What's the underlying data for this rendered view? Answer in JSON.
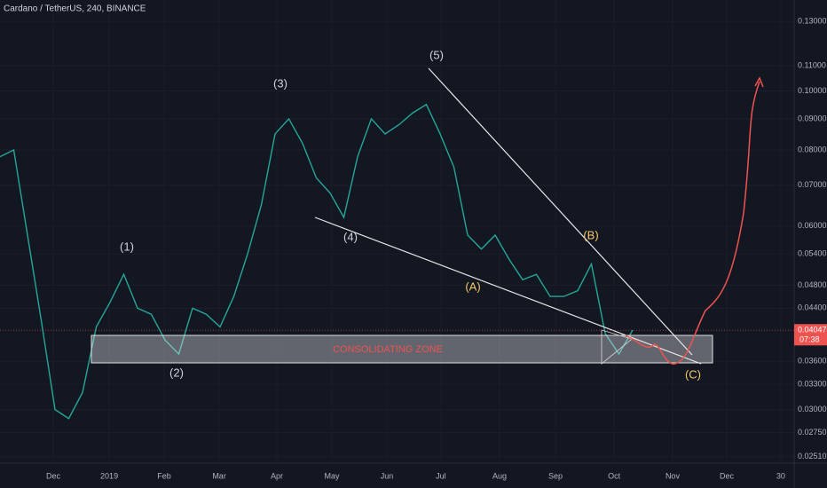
{
  "chart_data": {
    "type": "line",
    "title": "Cardano / TetherUS, 240, BINANCE",
    "log_scale": true,
    "color": "#26a69a",
    "values": [
      0.078,
      0.08,
      0.058,
      0.042,
      0.03,
      0.029,
      0.032,
      0.041,
      0.045,
      0.05,
      0.044,
      0.043,
      0.039,
      0.037,
      0.044,
      0.043,
      0.041,
      0.046,
      0.054,
      0.065,
      0.085,
      0.09,
      0.082,
      0.072,
      0.068,
      0.062,
      0.078,
      0.09,
      0.085,
      0.088,
      0.092,
      0.095,
      0.085,
      0.075,
      0.058,
      0.055,
      0.058,
      0.053,
      0.049,
      0.05,
      0.046,
      0.046,
      0.047,
      0.052,
      0.04,
      0.037,
      0.0405
    ],
    "xlim": [
      0,
      60
    ],
    "xticks": [
      {
        "value": 3.87,
        "label": "Dec"
      },
      {
        "value": 7.94,
        "label": "2019"
      },
      {
        "value": 11.94,
        "label": "Feb"
      },
      {
        "value": 15.94,
        "label": "Mar"
      },
      {
        "value": 20.13,
        "label": "Apr"
      },
      {
        "value": 24.13,
        "label": "May"
      },
      {
        "value": 28.13,
        "label": "Jun"
      },
      {
        "value": 32.06,
        "label": "Jul"
      },
      {
        "value": 36.32,
        "label": "Aug"
      },
      {
        "value": 40.39,
        "label": "Sep"
      },
      {
        "value": 44.65,
        "label": "Oct"
      },
      {
        "value": 48.9,
        "label": "Nov"
      },
      {
        "value": 52.84,
        "label": "Dec"
      },
      {
        "value": 56.77,
        "label": "30"
      }
    ],
    "ylim": [
      0.0245,
      0.141
    ],
    "yticks": [
      {
        "value": 0.13,
        "label": "0.13000"
      },
      {
        "value": 0.11,
        "label": "0.11000"
      },
      {
        "value": 0.1,
        "label": "0.10000"
      },
      {
        "value": 0.09,
        "label": "0.09000"
      },
      {
        "value": 0.08,
        "label": "0.08000"
      },
      {
        "value": 0.07,
        "label": "0.07000"
      },
      {
        "value": 0.06,
        "label": "0.06000"
      },
      {
        "value": 0.054,
        "label": "0.05400"
      },
      {
        "value": 0.048,
        "label": "0.04800"
      },
      {
        "value": 0.044,
        "label": "0.04400"
      },
      {
        "value": 0.036,
        "label": "0.03600"
      },
      {
        "value": 0.033,
        "label": "0.03300"
      },
      {
        "value": 0.03,
        "label": "0.03000"
      },
      {
        "value": 0.0275,
        "label": "0.02750"
      },
      {
        "value": 0.0251,
        "label": "0.02510"
      }
    ],
    "last_price": {
      "value": 0.04047,
      "label": "0.04047"
    },
    "countdown": "07:38",
    "annotations": [
      "(1)",
      "(2)",
      "(3)",
      "(4)",
      "(5)",
      "(A)",
      "(B)",
      "(C)",
      "CONSOLIDATING ZONE"
    ]
  }
}
